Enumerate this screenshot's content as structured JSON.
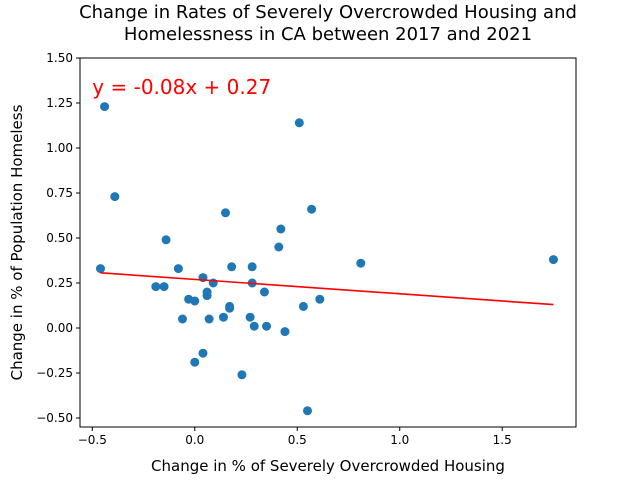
{
  "chart_data": {
    "type": "scatter",
    "title_lines": [
      "Change in Rates of Severely Overcrowded Housing and",
      "Homelessness in CA between 2017 and 2021"
    ],
    "xlabel": "Change in % of Severely Overcrowded Housing",
    "ylabel": "Change in % of Population Homeless",
    "xlim": [
      -0.56,
      1.86
    ],
    "ylim": [
      -0.55,
      1.5
    ],
    "xticks": [
      -0.5,
      0.0,
      0.5,
      1.0,
      1.5
    ],
    "xtick_labels": [
      "−0.5",
      "0.0",
      "0.5",
      "1.0",
      "1.5"
    ],
    "yticks": [
      -0.5,
      -0.25,
      0.0,
      0.25,
      0.5,
      0.75,
      1.0,
      1.25,
      1.5
    ],
    "ytick_labels": [
      "−0.50",
      "−0.25",
      "0.00",
      "0.25",
      "0.50",
      "0.75",
      "1.00",
      "1.25",
      "1.50"
    ],
    "points": [
      {
        "x": -0.44,
        "y": 1.23
      },
      {
        "x": -0.39,
        "y": 0.73
      },
      {
        "x": -0.46,
        "y": 0.33
      },
      {
        "x": -0.14,
        "y": 0.49
      },
      {
        "x": -0.08,
        "y": 0.33
      },
      {
        "x": -0.19,
        "y": 0.23
      },
      {
        "x": -0.15,
        "y": 0.23
      },
      {
        "x": -0.03,
        "y": 0.16
      },
      {
        "x": 0.0,
        "y": 0.15
      },
      {
        "x": -0.06,
        "y": 0.05
      },
      {
        "x": 0.0,
        "y": -0.19
      },
      {
        "x": 0.04,
        "y": -0.14
      },
      {
        "x": 0.04,
        "y": 0.28
      },
      {
        "x": 0.06,
        "y": 0.2
      },
      {
        "x": 0.06,
        "y": 0.18
      },
      {
        "x": 0.09,
        "y": 0.25
      },
      {
        "x": 0.07,
        "y": 0.05
      },
      {
        "x": 0.14,
        "y": 0.06
      },
      {
        "x": 0.15,
        "y": 0.64
      },
      {
        "x": 0.17,
        "y": 0.12
      },
      {
        "x": 0.17,
        "y": 0.11
      },
      {
        "x": 0.18,
        "y": 0.34
      },
      {
        "x": 0.23,
        "y": -0.26
      },
      {
        "x": 0.27,
        "y": 0.06
      },
      {
        "x": 0.28,
        "y": 0.34
      },
      {
        "x": 0.28,
        "y": 0.25
      },
      {
        "x": 0.29,
        "y": 0.01
      },
      {
        "x": 0.34,
        "y": 0.2
      },
      {
        "x": 0.35,
        "y": 0.01
      },
      {
        "x": 0.41,
        "y": 0.45
      },
      {
        "x": 0.42,
        "y": 0.55
      },
      {
        "x": 0.44,
        "y": -0.02
      },
      {
        "x": 0.51,
        "y": 1.14
      },
      {
        "x": 0.53,
        "y": 0.12
      },
      {
        "x": 0.55,
        "y": -0.46
      },
      {
        "x": 0.57,
        "y": 0.66
      },
      {
        "x": 0.61,
        "y": 0.16
      },
      {
        "x": 0.81,
        "y": 0.36
      },
      {
        "x": 1.75,
        "y": 0.38
      }
    ],
    "regression": {
      "slope": -0.08,
      "intercept": 0.27,
      "x_range": [
        -0.46,
        1.75
      ],
      "equation_text": "y = -0.08x + 0.27",
      "equation_pos": {
        "x": -0.5,
        "y": 1.3
      }
    },
    "colors": {
      "points": "#1f77b4",
      "line": "#ff0000",
      "annotation": "#ff0000"
    },
    "grid": false,
    "legend": "none"
  }
}
